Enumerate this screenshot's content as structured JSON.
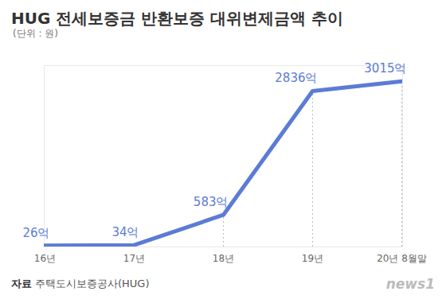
{
  "chart_data": {
    "type": "line",
    "title": "HUG 전세보증금 반환보증 대위변제금액 추이",
    "subtitle": "(단위 : 원)",
    "source": "자료 주택도시보증공사(HUG)",
    "annotations": [
      "news1"
    ],
    "categories": [
      "16년",
      "17년",
      "18년",
      "19년",
      "20년 8월말"
    ],
    "values": [
      26,
      34,
      583,
      2836,
      3015
    ],
    "value_labels": [
      "26억",
      "34억",
      "583억",
      "2836억",
      "3015억"
    ],
    "data_labels": true,
    "color": "#5b7bd6",
    "ylim": [
      0,
      3300
    ],
    "yticks": [],
    "tick_labels": "x",
    "grid": false
  }
}
